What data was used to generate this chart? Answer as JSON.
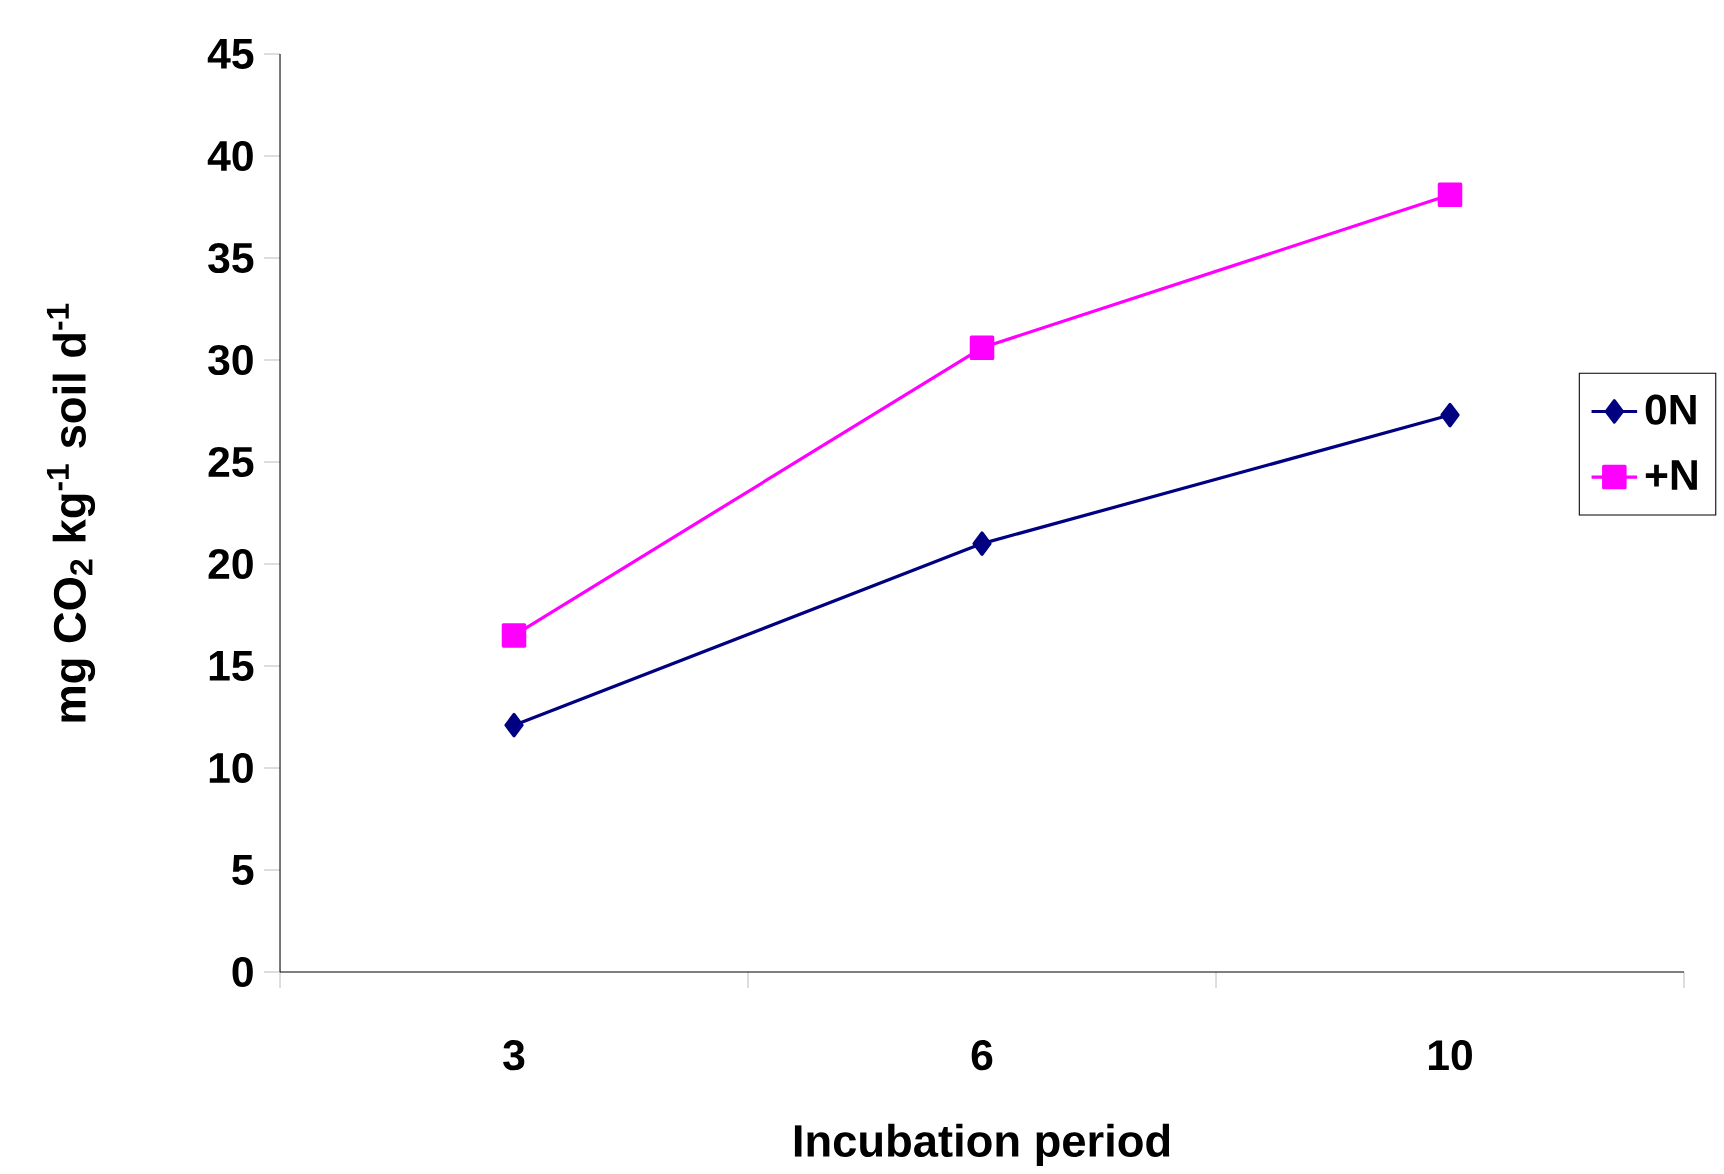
{
  "chart_data": {
    "type": "line",
    "xlabel": "Incubation period",
    "ylabel": "mg CO$_{2}$ kg$^{-1}$ soil d$^{-1}$",
    "categories": [
      "3",
      "6",
      "10"
    ],
    "series": [
      {
        "name": "0N",
        "color": "#000080",
        "marker": "diamond",
        "values": [
          12.1,
          21.0,
          27.3
        ]
      },
      {
        "name": "+N",
        "color": "#ff00ff",
        "marker": "square",
        "values": [
          16.5,
          30.6,
          38.1
        ]
      }
    ],
    "ylim": [
      0,
      45
    ],
    "yticks": [
      0,
      5,
      10,
      15,
      20,
      25,
      30,
      35,
      40,
      45
    ],
    "grid": false,
    "legend": "right",
    "line_style": "solid"
  }
}
